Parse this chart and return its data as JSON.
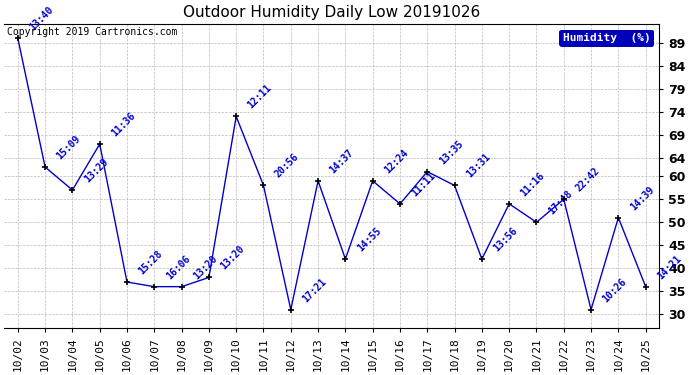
{
  "title": "Outdoor Humidity Daily Low 20191026",
  "copyright": "Copyright 2019 Cartronics.com",
  "legend_label": "Humidity  (%)",
  "dates": [
    "10/02",
    "10/03",
    "10/04",
    "10/05",
    "10/06",
    "10/07",
    "10/08",
    "10/09",
    "10/10",
    "10/11",
    "10/12",
    "10/13",
    "10/14",
    "10/15",
    "10/16",
    "10/17",
    "10/18",
    "10/19",
    "10/20",
    "10/21",
    "10/22",
    "10/23",
    "10/24",
    "10/25"
  ],
  "values": [
    90,
    62,
    57,
    67,
    37,
    36,
    36,
    38,
    73,
    58,
    31,
    59,
    42,
    59,
    54,
    61,
    58,
    42,
    54,
    50,
    55,
    31,
    51,
    36
  ],
  "labels": [
    "13:40",
    "15:09",
    "13:29",
    "11:36",
    "15:28",
    "16:06",
    "13:20",
    "13:20",
    "12:11",
    "20:56",
    "17:21",
    "14:37",
    "14:55",
    "12:24",
    "11:11",
    "13:35",
    "13:31",
    "13:56",
    "11:16",
    "17:48",
    "22:42",
    "10:26",
    "14:39",
    "14:21"
  ],
  "line_color": "#0000cc",
  "marker_color": "#000000",
  "background_color": "#ffffff",
  "grid_color": "#bbbbbb",
  "ylabel_ticks": [
    30,
    35,
    40,
    45,
    50,
    55,
    60,
    64,
    69,
    74,
    79,
    84,
    89
  ],
  "ylim": [
    27,
    93
  ],
  "title_fontsize": 11,
  "label_fontsize": 7,
  "copyright_fontsize": 7,
  "tick_fontsize": 8,
  "label_rotation": 45
}
